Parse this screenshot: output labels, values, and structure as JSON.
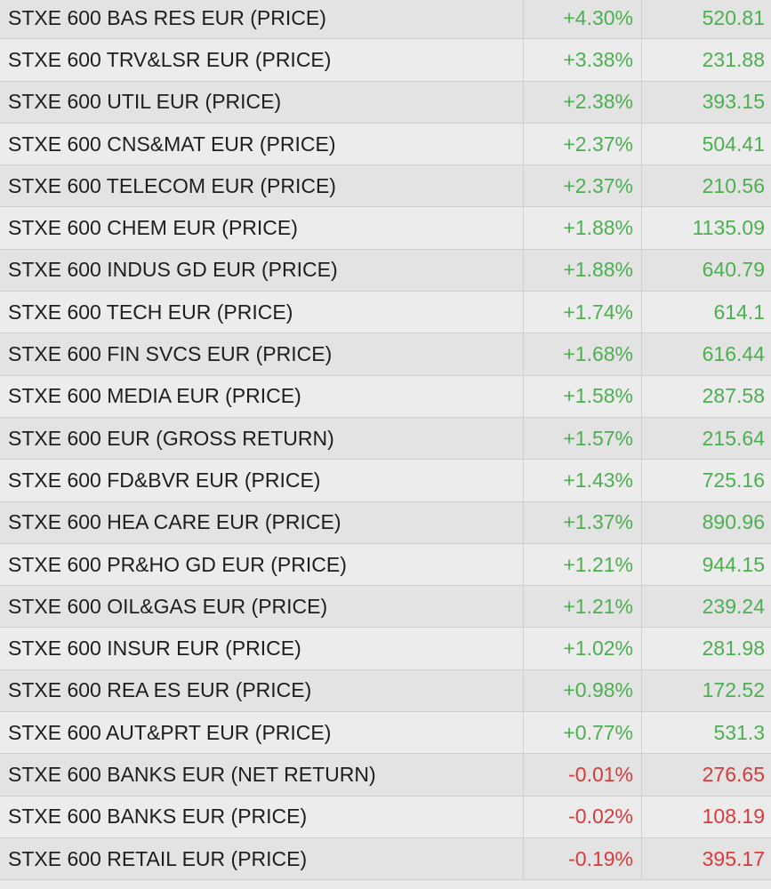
{
  "colors": {
    "positive": "#4caf50",
    "negative": "#d93a3a",
    "text": "#1e1e1e"
  },
  "rows": [
    {
      "name": "STXE 600 BAS RES EUR (PRICE)",
      "change": "+4.30%",
      "price": "520.81",
      "direction": "up"
    },
    {
      "name": "STXE 600 TRV&LSR EUR (PRICE)",
      "change": "+3.38%",
      "price": "231.88",
      "direction": "up"
    },
    {
      "name": "STXE 600 UTIL EUR (PRICE)",
      "change": "+2.38%",
      "price": "393.15",
      "direction": "up"
    },
    {
      "name": "STXE 600 CNS&MAT EUR (PRICE)",
      "change": "+2.37%",
      "price": "504.41",
      "direction": "up"
    },
    {
      "name": "STXE 600 TELECOM EUR (PRICE)",
      "change": "+2.37%",
      "price": "210.56",
      "direction": "up"
    },
    {
      "name": "STXE 600 CHEM EUR (PRICE)",
      "change": "+1.88%",
      "price": "1135.09",
      "direction": "up"
    },
    {
      "name": "STXE 600 INDUS GD EUR (PRICE)",
      "change": "+1.88%",
      "price": "640.79",
      "direction": "up"
    },
    {
      "name": "STXE 600 TECH EUR (PRICE)",
      "change": "+1.74%",
      "price": "614.1",
      "direction": "up"
    },
    {
      "name": "STXE 600 FIN SVCS EUR (PRICE)",
      "change": "+1.68%",
      "price": "616.44",
      "direction": "up"
    },
    {
      "name": "STXE 600 MEDIA EUR (PRICE)",
      "change": "+1.58%",
      "price": "287.58",
      "direction": "up"
    },
    {
      "name": "STXE 600 EUR (GROSS RETURN)",
      "change": "+1.57%",
      "price": "215.64",
      "direction": "up"
    },
    {
      "name": "STXE 600 FD&BVR EUR (PRICE)",
      "change": "+1.43%",
      "price": "725.16",
      "direction": "up"
    },
    {
      "name": "STXE 600 HEA CARE EUR (PRICE)",
      "change": "+1.37%",
      "price": "890.96",
      "direction": "up"
    },
    {
      "name": "STXE 600 PR&HO GD EUR (PRICE)",
      "change": "+1.21%",
      "price": "944.15",
      "direction": "up"
    },
    {
      "name": "STXE 600 OIL&GAS EUR (PRICE)",
      "change": "+1.21%",
      "price": "239.24",
      "direction": "up"
    },
    {
      "name": "STXE 600 INSUR EUR (PRICE)",
      "change": "+1.02%",
      "price": "281.98",
      "direction": "up"
    },
    {
      "name": "STXE 600 REA ES EUR (PRICE)",
      "change": "+0.98%",
      "price": "172.52",
      "direction": "up"
    },
    {
      "name": "STXE 600 AUT&PRT EUR (PRICE)",
      "change": "+0.77%",
      "price": "531.3",
      "direction": "up"
    },
    {
      "name": "STXE 600 BANKS EUR (NET RETURN)",
      "change": "-0.01%",
      "price": "276.65",
      "direction": "down"
    },
    {
      "name": "STXE 600 BANKS EUR (PRICE)",
      "change": "-0.02%",
      "price": "108.19",
      "direction": "down"
    },
    {
      "name": "STXE 600 RETAIL EUR (PRICE)",
      "change": "-0.19%",
      "price": "395.17",
      "direction": "down"
    }
  ]
}
